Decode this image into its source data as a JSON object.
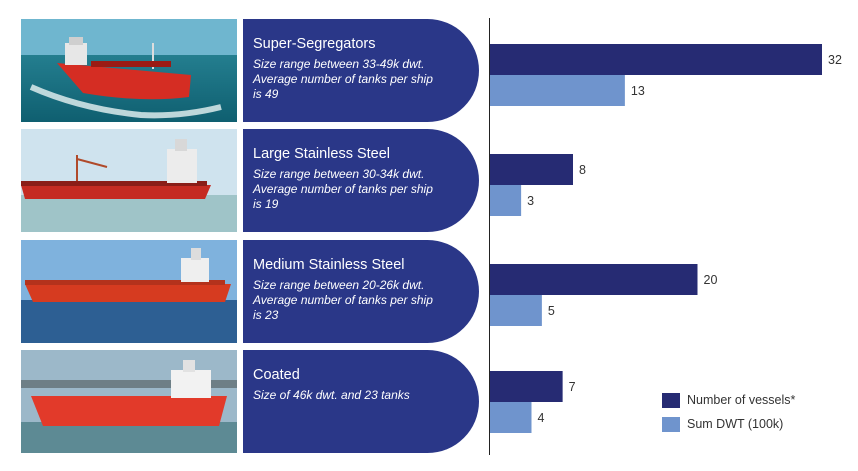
{
  "colors": {
    "panel": "#2a3788",
    "vessels": "#262b73",
    "dwt": "#6f94cd",
    "axis": "#222222"
  },
  "categories": [
    {
      "title": "Super-Segregators",
      "desc": "Size range between 33-49k dwt. Average number of tanks per ship is 49",
      "image": "red-chemical-tanker-at-speed-photo"
    },
    {
      "title": "Large Stainless Steel",
      "desc": "Size range between 30-34k dwt. Average number of tanks per ship is 19",
      "image": "red-tanker-side-view-photo"
    },
    {
      "title": "Medium Stainless Steel",
      "desc": "Size range between 20-26k dwt. Average number of tanks per ship is 23",
      "image": "odfjell-tanker-calm-sea-photo"
    },
    {
      "title": "Coated",
      "desc": "Size of 46k dwt. and 23 tanks",
      "image": "odfjell-tanker-near-port-photo"
    }
  ],
  "chart_data": {
    "type": "bar",
    "orientation": "horizontal",
    "categories": [
      "Super-Segregators",
      "Large Stainless Steel",
      "Medium Stainless Steel",
      "Coated"
    ],
    "series": [
      {
        "name": "Number of vessels*",
        "values": [
          32,
          8,
          20,
          7
        ]
      },
      {
        "name": "Sum DWT (100k)",
        "values": [
          13,
          3,
          5,
          4
        ]
      }
    ],
    "xlim": [
      0,
      32
    ],
    "legend_position": "bottom-right",
    "title": "",
    "xlabel": "",
    "ylabel": ""
  },
  "legend": {
    "vessels_label": "Number of vessels*",
    "dwt_label": "Sum DWT (100k)"
  }
}
